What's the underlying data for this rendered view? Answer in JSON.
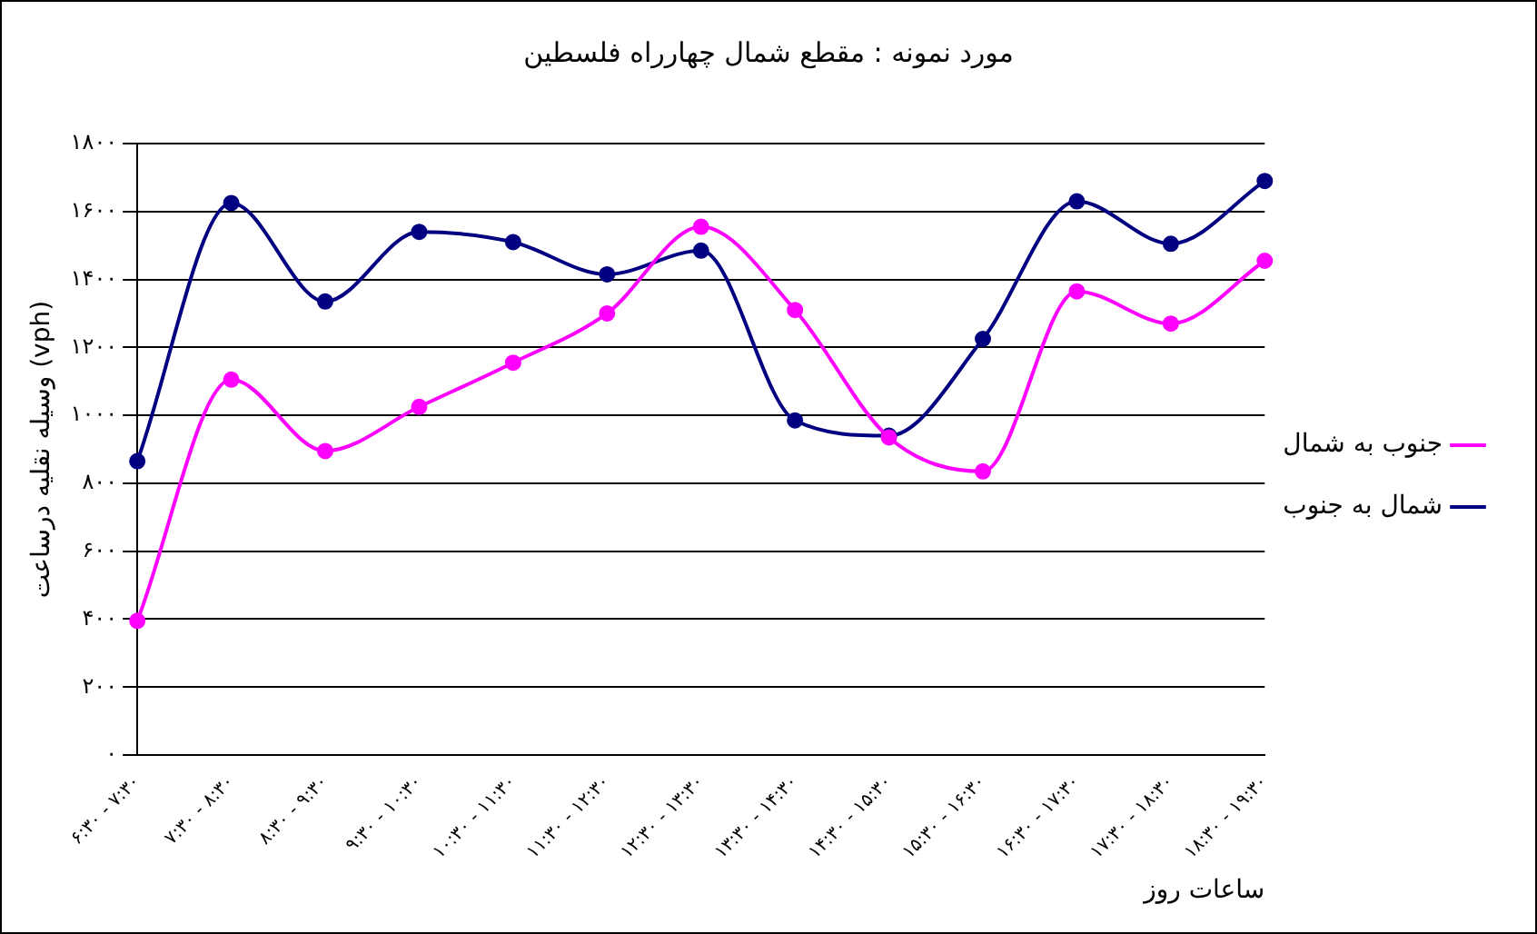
{
  "chart_data": {
    "type": "line",
    "title": "مورد نمونه : مقطع شمال چهارراه فلسطین",
    "xlabel": "ساعات روز",
    "ylabel": "وسیله نقلیه درساعت (vph)",
    "categories": [
      "۶:۳۰ - ۷:۳۰",
      "۷:۳۰ - ۸:۳۰",
      "۸:۳۰ - ۹:۳۰",
      "۹:۳۰ - ۱۰:۳۰",
      "۱۰:۳۰ - ۱۱:۳۰",
      "۱۱:۳۰ - ۱۲:۳۰",
      "۱۲:۳۰ - ۱۳:۳۰",
      "۱۳:۳۰ - ۱۴:۳۰",
      "۱۴:۳۰ - ۱۵:۳۰",
      "۱۵:۳۰ - ۱۶:۳۰",
      "۱۶:۳۰ - ۱۷:۳۰",
      "۱۷:۳۰ - ۱۸:۳۰",
      "۱۸:۳۰ - ۱۹:۳۰"
    ],
    "series": [
      {
        "name": "شمال به جنوب",
        "color": "#000080",
        "values": [
          865,
          1625,
          1335,
          1540,
          1510,
          1415,
          1485,
          985,
          940,
          1225,
          1630,
          1505,
          1690
        ]
      },
      {
        "name": "جنوب به شمال",
        "color": "#ff00ff",
        "values": [
          395,
          1105,
          895,
          1025,
          1155,
          1300,
          1555,
          1310,
          935,
          835,
          1365,
          1270,
          1455
        ]
      }
    ],
    "ylim": [
      0,
      1800
    ],
    "yticks": [
      {
        "value": 0,
        "label": "۰"
      },
      {
        "value": 200,
        "label": "۲۰۰"
      },
      {
        "value": 400,
        "label": "۴۰۰"
      },
      {
        "value": 600,
        "label": "۶۰۰"
      },
      {
        "value": 800,
        "label": "۸۰۰"
      },
      {
        "value": 1000,
        "label": "۱۰۰۰"
      },
      {
        "value": 1200,
        "label": "۱۲۰۰"
      },
      {
        "value": 1400,
        "label": "۱۴۰۰"
      },
      {
        "value": 1600,
        "label": "۱۶۰۰"
      },
      {
        "value": 1800,
        "label": "۱۸۰۰"
      }
    ],
    "grid": "y",
    "legend": "right",
    "marker": "circle",
    "line_style": "solid"
  }
}
